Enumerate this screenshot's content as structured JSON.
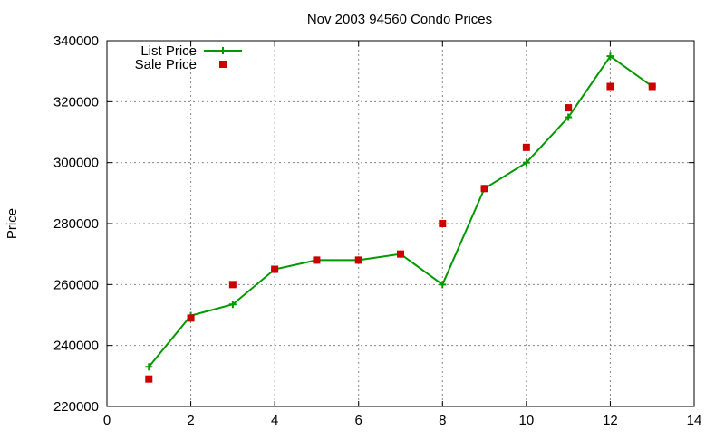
{
  "chart_data": {
    "type": "line",
    "title": "Nov 2003 94560 Condo Prices",
    "xlabel": "",
    "ylabel": "Price",
    "xlim": [
      0,
      14
    ],
    "ylim": [
      220000,
      340000
    ],
    "xticks": [
      0,
      2,
      4,
      6,
      8,
      10,
      12,
      14
    ],
    "yticks": [
      220000,
      240000,
      260000,
      280000,
      300000,
      320000,
      340000
    ],
    "grid": true,
    "legend_position": "top-left",
    "series": [
      {
        "name": "List Price",
        "style": "line-with-plus-markers",
        "color": "#009900",
        "x": [
          1,
          2,
          3,
          4,
          5,
          6,
          7,
          8,
          9,
          10,
          11,
          12,
          13
        ],
        "y": [
          233000,
          249800,
          253500,
          265000,
          268000,
          268000,
          270000,
          260000,
          291500,
          300000,
          314900,
          334900,
          325000
        ]
      },
      {
        "name": "Sale Price",
        "style": "square-markers",
        "color": "#cc0000",
        "x": [
          1,
          2,
          3,
          4,
          5,
          6,
          7,
          8,
          9,
          10,
          11,
          12,
          13
        ],
        "y": [
          229000,
          249000,
          260000,
          265000,
          268000,
          268000,
          270000,
          280000,
          291500,
          305000,
          318000,
          325000,
          325000
        ]
      }
    ]
  }
}
